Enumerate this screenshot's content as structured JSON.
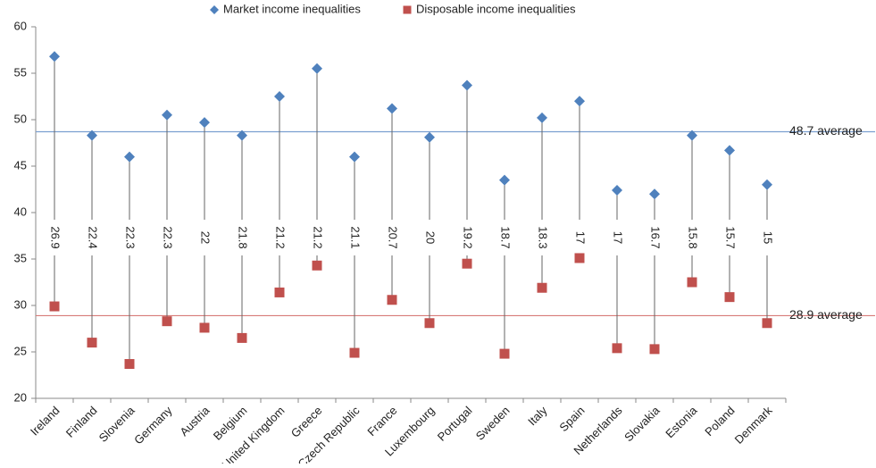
{
  "chart_data": {
    "type": "dumbbell",
    "categories": [
      "Ireland",
      "Finland",
      "Slovenia",
      "Germany",
      "Austria",
      "Belgium",
      "United Kingdom",
      "Greece",
      "Czech Republic",
      "France",
      "Luxembourg",
      "Portugal",
      "Sweden",
      "Italy",
      "Spain",
      "Netherlands",
      "Slovakia",
      "Estonia",
      "Poland",
      "Denmark"
    ],
    "series": [
      {
        "name": "Market income inequalities",
        "color": "#4f81bd",
        "marker": "diamond",
        "values": [
          56.8,
          48.3,
          46.0,
          50.5,
          49.7,
          48.3,
          52.5,
          55.5,
          46.0,
          51.2,
          48.1,
          53.7,
          43.5,
          50.2,
          52.0,
          42.4,
          42.0,
          48.3,
          46.7,
          43.0
        ]
      },
      {
        "name": "Disposable income inequalities",
        "color": "#c0504d",
        "marker": "square",
        "values": [
          29.9,
          26.0,
          23.7,
          28.3,
          27.6,
          26.5,
          31.4,
          34.3,
          24.9,
          30.6,
          28.1,
          34.5,
          24.8,
          31.9,
          35.1,
          25.4,
          25.3,
          32.5,
          30.9,
          28.1
        ]
      }
    ],
    "differences": [
      26.9,
      22.4,
      22.3,
      22.3,
      22,
      21.8,
      21.2,
      21.2,
      21.1,
      20.7,
      20,
      19.2,
      18.7,
      18.3,
      17,
      17,
      16.7,
      15.8,
      15.7,
      15
    ],
    "reference_lines": [
      {
        "value": 48.7,
        "label": "48.7 average",
        "color": "#7b9fd0"
      },
      {
        "value": 28.9,
        "label": "28.9 average",
        "color": "#d77b78"
      }
    ],
    "ylim": [
      20,
      60
    ],
    "yticks": [
      20,
      25,
      30,
      35,
      40,
      45,
      50,
      55,
      60
    ],
    "legend": "top"
  }
}
